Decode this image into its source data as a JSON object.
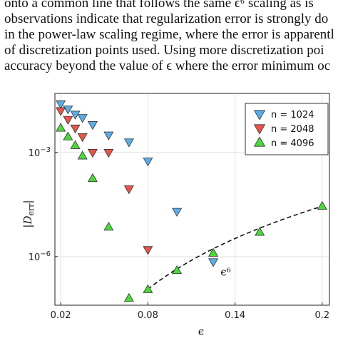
{
  "document": {
    "lines": [
      "onto a common line that follows the same ϵ⁶ scaling as is",
      "observations indicate that regularization error is strongly do",
      "in the power-law scaling regime, where the error is apparentl",
      "of discretization points used. Using more discretization poi",
      "accuracy beyond the value of ϵ where the error minimum oc"
    ]
  },
  "chart_data": {
    "type": "scatter",
    "xlabel": "ϵ",
    "ylabel": "|D_err|",
    "ylabel_main": "D",
    "ylabel_sub": "err",
    "xlim": [
      0.016,
      0.205
    ],
    "ylim_log10": [
      -7.4,
      -1.3
    ],
    "y_scale": "log",
    "grid": true,
    "legend_position": "top-right",
    "x_ticks": [
      {
        "value": 0.02,
        "label": "0.02"
      },
      {
        "value": 0.08,
        "label": "0.08"
      },
      {
        "value": 0.14,
        "label": "0.14"
      },
      {
        "value": 0.2,
        "label": "0.2"
      }
    ],
    "y_ticks": [
      {
        "value": -3,
        "base": "10",
        "exp": "−3"
      },
      {
        "value": -6,
        "base": "10",
        "exp": "−6"
      }
    ],
    "series": [
      {
        "name": "n = 1024",
        "marker": "down-triangle",
        "color": "#5aaee6",
        "points": [
          {
            "x": 0.02,
            "y": -1.6
          },
          {
            "x": 0.025,
            "y": -1.75
          },
          {
            "x": 0.03,
            "y": -1.9
          },
          {
            "x": 0.035,
            "y": -2.0
          },
          {
            "x": 0.042,
            "y": -2.2
          },
          {
            "x": 0.053,
            "y": -2.5
          },
          {
            "x": 0.067,
            "y": -2.7
          },
          {
            "x": 0.08,
            "y": -3.25
          },
          {
            "x": 0.1,
            "y": -4.7
          },
          {
            "x": 0.125,
            "y": -6.15
          }
        ]
      },
      {
        "name": "n = 2048",
        "marker": "down-triangle",
        "color": "#e8534a",
        "points": [
          {
            "x": 0.02,
            "y": -1.8
          },
          {
            "x": 0.025,
            "y": -2.05
          },
          {
            "x": 0.03,
            "y": -2.3
          },
          {
            "x": 0.035,
            "y": -2.55
          },
          {
            "x": 0.042,
            "y": -3.0
          },
          {
            "x": 0.053,
            "y": -3.0
          },
          {
            "x": 0.067,
            "y": -4.05
          },
          {
            "x": 0.08,
            "y": -5.8
          }
        ]
      },
      {
        "name": "n = 4096",
        "marker": "up-triangle",
        "color": "#4cd83a",
        "points": [
          {
            "x": 0.02,
            "y": -2.3
          },
          {
            "x": 0.025,
            "y": -2.55
          },
          {
            "x": 0.03,
            "y": -2.8
          },
          {
            "x": 0.035,
            "y": -3.1
          },
          {
            "x": 0.042,
            "y": -3.75
          },
          {
            "x": 0.053,
            "y": -5.15
          },
          {
            "x": 0.067,
            "y": -7.2
          },
          {
            "x": 0.08,
            "y": -6.95
          },
          {
            "x": 0.1,
            "y": -6.4
          },
          {
            "x": 0.125,
            "y": -5.9
          },
          {
            "x": 0.157,
            "y": -5.3
          },
          {
            "x": 0.2,
            "y": -4.55
          }
        ]
      }
    ],
    "fit_line": {
      "label": "ϵ⁶",
      "style": "dashed",
      "x_start": 0.08,
      "x_end": 0.2,
      "anchor": {
        "x": 0.2,
        "y": -4.55
      },
      "power": 6,
      "label_position": {
        "x": 0.13,
        "y": -6.55
      }
    }
  }
}
